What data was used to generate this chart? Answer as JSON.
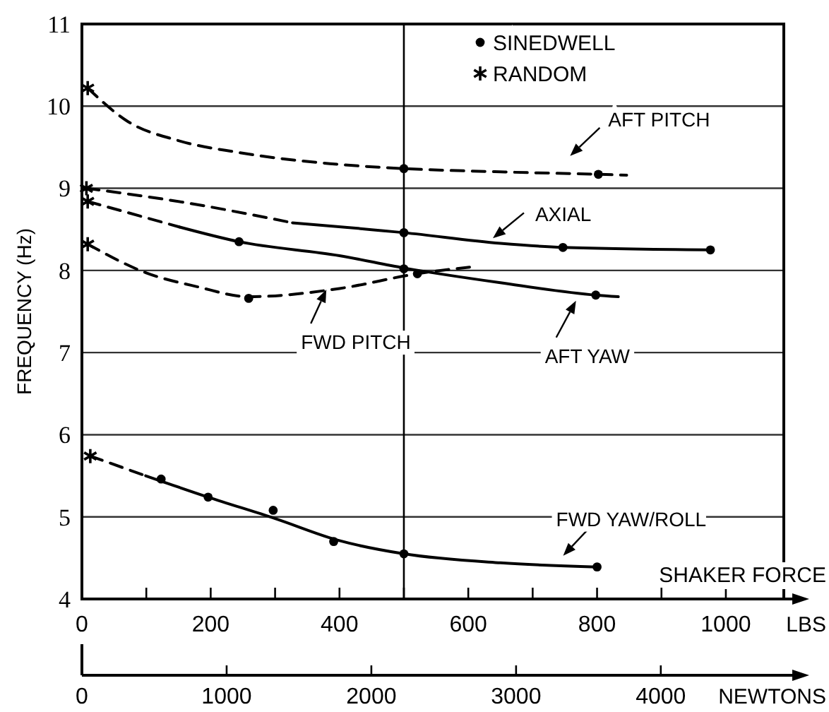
{
  "chart_data": {
    "type": "line",
    "xlabel": "LBS",
    "x2label": "NEWTONS",
    "ylabel": "FREQUENCY (Hz)",
    "annotations": [
      "SHAKER FORCE"
    ],
    "xlim": [
      0,
      1090
    ],
    "xticks": [
      0,
      {
        "value": 100,
        "label": null
      },
      200,
      {
        "value": 300,
        "label": null
      },
      400,
      {
        "value": 500,
        "label": null
      },
      600,
      {
        "value": 700,
        "label": null
      },
      800,
      {
        "value": 900,
        "label": null
      },
      1000
    ],
    "x2lim": [
      0,
      4850
    ],
    "x2ticks": [
      0,
      1000,
      2000,
      3000,
      4000
    ],
    "ylim": [
      4,
      11
    ],
    "yticks": [
      4,
      5,
      6,
      7,
      8,
      9,
      10,
      11
    ],
    "grid": "y",
    "legend": "top",
    "ref_lines": [
      {
        "axis": "x",
        "value": 500,
        "color": "#000000"
      }
    ],
    "series": [
      {
        "name": "AFT PITCH",
        "type": "line",
        "line_style": "dashed",
        "color": "#000000",
        "x": [
          9,
          70,
          150,
          240,
          385,
          500,
          650,
          802,
          846
        ],
        "values": [
          10.22,
          9.82,
          9.58,
          9.44,
          9.3,
          9.24,
          9.2,
          9.17,
          9.16
        ]
      },
      {
        "type": "line",
        "line_style": "dashed",
        "color": "#000000",
        "x": [
          7,
          165,
          327
        ],
        "values": [
          9.0,
          8.82,
          8.58
        ]
      },
      {
        "name": "AXIAL",
        "type": "line",
        "line_style": "solid",
        "color": "#000000",
        "x": [
          327,
          500,
          650,
          747,
          976
        ],
        "values": [
          8.58,
          8.46,
          8.33,
          8.28,
          8.25
        ]
      },
      {
        "type": "line",
        "line_style": "dashed",
        "color": "#000000",
        "x": [
          9,
          151
        ],
        "values": [
          8.84,
          8.53
        ]
      },
      {
        "name": "AFT YAW",
        "type": "line",
        "line_style": "solid",
        "color": "#000000",
        "x": [
          151,
          244,
          400,
          500,
          650,
          798,
          833
        ],
        "values": [
          8.53,
          8.35,
          8.18,
          8.03,
          7.85,
          7.7,
          7.68
        ]
      },
      {
        "name": "FWD PITCH",
        "type": "line",
        "line_style": "dashed",
        "color": "#000000",
        "x": [
          9,
          100,
          180,
          259,
          400,
          521,
          602
        ],
        "values": [
          8.32,
          7.97,
          7.8,
          7.68,
          7.78,
          7.96,
          8.04
        ]
      },
      {
        "type": "line",
        "line_style": "dashed",
        "color": "#000000",
        "x": [
          13,
          99
        ],
        "values": [
          5.74,
          5.5
        ]
      },
      {
        "name": "FWD YAW/ROLL",
        "type": "line",
        "line_style": "solid",
        "color": "#000000",
        "x": [
          99,
          196,
          300,
          400,
          500,
          650,
          800
        ],
        "values": [
          5.5,
          5.24,
          4.98,
          4.71,
          4.55,
          4.44,
          4.39
        ]
      },
      {
        "name": "SINEDWELL",
        "type": "scatter",
        "marker": "circle",
        "color": "#000000",
        "x": [
          500,
          802,
          500,
          747,
          976,
          244,
          500,
          798,
          259,
          521,
          123,
          196,
          297,
          391,
          500,
          800
        ],
        "values": [
          9.24,
          9.17,
          8.46,
          8.28,
          8.25,
          8.35,
          8.02,
          7.7,
          7.66,
          7.96,
          5.46,
          5.24,
          5.08,
          4.7,
          4.55,
          4.39
        ]
      },
      {
        "name": "RANDOM",
        "type": "scatter",
        "marker": "cross",
        "color": "#000000",
        "x": [
          9,
          7,
          9,
          9,
          13
        ],
        "values": [
          10.22,
          9.0,
          8.84,
          8.32,
          5.74
        ]
      }
    ]
  }
}
